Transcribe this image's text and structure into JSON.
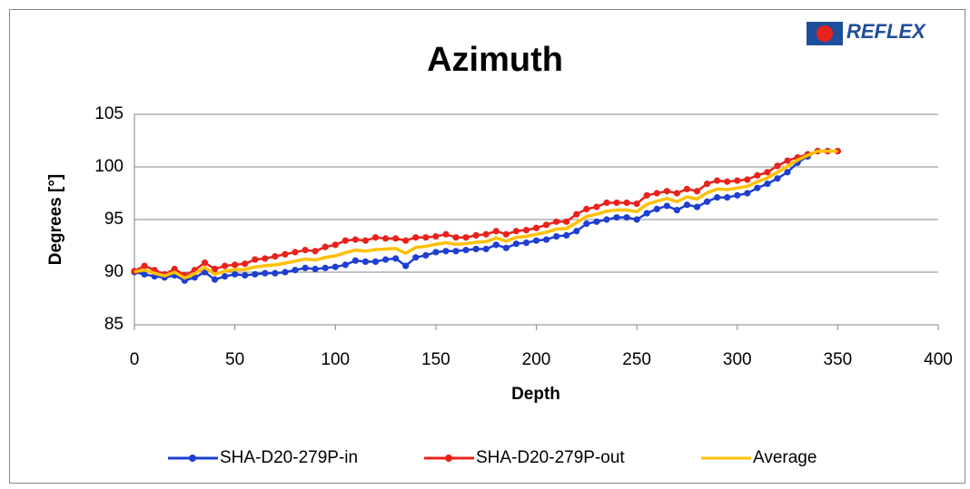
{
  "chart_data": {
    "type": "line",
    "title": "Azimuth",
    "logo": "REFLEX",
    "xlabel": "Depth",
    "ylabel": "Degrees [°]",
    "x": [
      0,
      5,
      10,
      15,
      20,
      25,
      30,
      35,
      40,
      45,
      50,
      55,
      60,
      65,
      70,
      75,
      80,
      85,
      90,
      95,
      100,
      105,
      110,
      115,
      120,
      125,
      130,
      135,
      140,
      145,
      150,
      155,
      160,
      165,
      170,
      175,
      180,
      185,
      190,
      195,
      200,
      205,
      210,
      215,
      220,
      225,
      230,
      235,
      240,
      245,
      250,
      255,
      260,
      265,
      270,
      275,
      280,
      285,
      290,
      295,
      300,
      305,
      310,
      315,
      320,
      325,
      330,
      335,
      340,
      345,
      350
    ],
    "series": [
      {
        "name": "SHA-D20-279P-in",
        "color": "#1f3fd0",
        "marker": true,
        "values": [
          90,
          89.8,
          89.6,
          89.5,
          89.7,
          89.2,
          89.5,
          90,
          89.3,
          89.6,
          89.8,
          89.7,
          89.8,
          89.9,
          89.9,
          90,
          90.2,
          90.4,
          90.3,
          90.4,
          90.5,
          90.7,
          91.1,
          91,
          91,
          91.2,
          91.3,
          90.6,
          91.4,
          91.6,
          91.9,
          92,
          92,
          92.1,
          92.2,
          92.2,
          92.6,
          92.3,
          92.7,
          92.8,
          93,
          93.1,
          93.4,
          93.5,
          93.9,
          94.6,
          94.8,
          95,
          95.2,
          95.2,
          95,
          95.6,
          96,
          96.3,
          95.9,
          96.4,
          96.2,
          96.7,
          97.1,
          97.1,
          97.3,
          97.5,
          98,
          98.4,
          98.9,
          99.5,
          100.4,
          101,
          101.5,
          101.5,
          101.5
        ]
      },
      {
        "name": "SHA-D20-279P-out",
        "color": "#e8231c",
        "marker": true,
        "values": [
          90.1,
          90.6,
          90.2,
          89.8,
          90.3,
          89.7,
          90.2,
          90.9,
          90.3,
          90.6,
          90.7,
          90.8,
          91.2,
          91.3,
          91.5,
          91.7,
          91.9,
          92.1,
          92,
          92.4,
          92.6,
          93,
          93.1,
          93,
          93.3,
          93.2,
          93.2,
          93,
          93.3,
          93.3,
          93.4,
          93.6,
          93.3,
          93.3,
          93.5,
          93.6,
          93.9,
          93.6,
          93.9,
          94,
          94.2,
          94.5,
          94.8,
          94.8,
          95.5,
          96,
          96.2,
          96.6,
          96.6,
          96.6,
          96.5,
          97.3,
          97.5,
          97.7,
          97.5,
          97.9,
          97.7,
          98.4,
          98.7,
          98.6,
          98.7,
          98.8,
          99.2,
          99.5,
          100.1,
          100.6,
          100.9,
          101.2,
          101.5,
          101.5,
          101.5
        ]
      },
      {
        "name": "Average",
        "color": "#ffc000",
        "marker": false,
        "values": [
          90.05,
          90.2,
          89.9,
          89.65,
          90,
          89.45,
          89.85,
          90.45,
          89.8,
          90.1,
          90.25,
          90.25,
          90.5,
          90.6,
          90.7,
          90.85,
          91.05,
          91.25,
          91.15,
          91.4,
          91.55,
          91.85,
          92.1,
          92,
          92.15,
          92.2,
          92.25,
          91.8,
          92.35,
          92.45,
          92.65,
          92.8,
          92.65,
          92.7,
          92.85,
          92.9,
          93.25,
          92.95,
          93.3,
          93.4,
          93.6,
          93.8,
          94.1,
          94.15,
          94.7,
          95.3,
          95.5,
          95.8,
          95.9,
          95.9,
          95.75,
          96.45,
          96.75,
          97,
          96.7,
          97.15,
          96.95,
          97.55,
          97.9,
          97.85,
          98,
          98.15,
          98.6,
          98.95,
          99.5,
          100.05,
          100.65,
          101.1,
          101.5,
          101.5,
          101.5
        ]
      }
    ],
    "xlim": [
      0,
      400
    ],
    "xticks": [
      0,
      50,
      100,
      150,
      200,
      250,
      300,
      350,
      400
    ],
    "ylim": [
      85,
      105
    ],
    "yticks": [
      85,
      90,
      95,
      100,
      105
    ],
    "grid": true,
    "legend": "bottom"
  }
}
